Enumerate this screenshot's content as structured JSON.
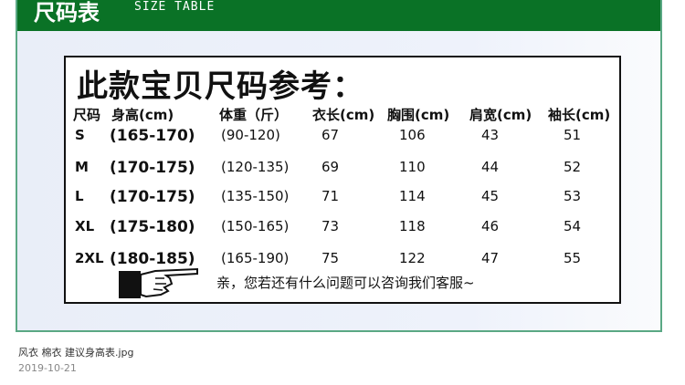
{
  "header": {
    "title_cn": "尺码表",
    "title_en": "SIZE TABLE",
    "color": "#0a7226"
  },
  "table": {
    "title": "此款宝贝尺码参考：",
    "headers": [
      "尺码",
      "身高(cm)",
      "体重（斤）",
      "衣长(cm)",
      "胸围(cm)",
      "肩宽(cm)",
      "袖长(cm)"
    ],
    "rows": [
      [
        "S",
        "(165-170)",
        "(90-120)",
        "67",
        "106",
        "43",
        "51"
      ],
      [
        "M",
        "(170-175)",
        "(120-135)",
        "69",
        "110",
        "44",
        "52"
      ],
      [
        "L",
        "(170-175)",
        "(135-150)",
        "71",
        "114",
        "45",
        "53"
      ],
      [
        "XL",
        "(175-180)",
        "(150-165)",
        "73",
        "118",
        "46",
        "54"
      ],
      [
        "2XL",
        "(180-185)",
        "(165-190)",
        "75",
        "122",
        "47",
        "55"
      ]
    ],
    "note": "亲，您若还有什么问题可以咨询我们客服~",
    "note_icon": "pointing-hand-icon"
  },
  "caption": {
    "filename": "风衣 棉衣 建议身高表.jpg",
    "date": "2019-10-21"
  }
}
